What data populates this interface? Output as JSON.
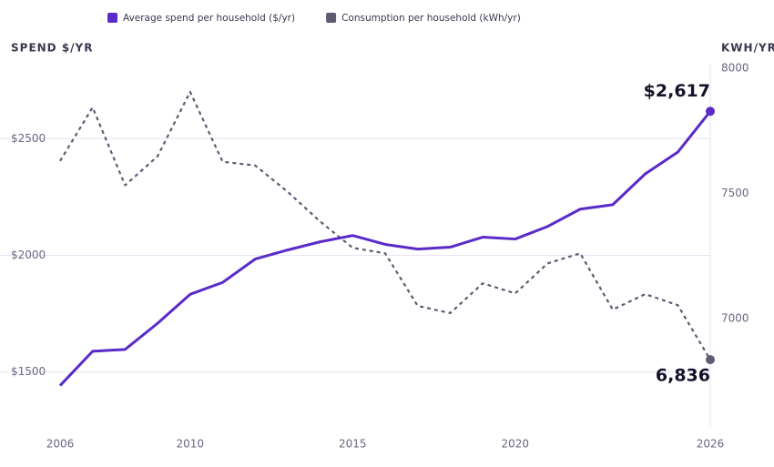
{
  "chart_data": {
    "type": "line",
    "x": [
      2006,
      2007,
      2008,
      2009,
      2010,
      2011,
      2012,
      2013,
      2014,
      2015,
      2016,
      2017,
      2018,
      2019,
      2020,
      2021,
      2022,
      2023,
      2024,
      2025,
      2026
    ],
    "xlim": [
      2006,
      2026
    ],
    "xticks": [
      2006,
      2010,
      2015,
      2020,
      2026
    ],
    "y_label": "SPEND $/YR",
    "y2_label": "KWH/YR",
    "ylim": [
      1300,
      2860
    ],
    "yticks": [
      {
        "value": 1500,
        "label": "$1500"
      },
      {
        "value": 2000,
        "label": "$2000"
      },
      {
        "value": 2500,
        "label": "$2500"
      }
    ],
    "y2lim": [
      6600,
      8055
    ],
    "y2ticks": [
      7000,
      7500,
      8000
    ],
    "grid": true,
    "legend": "top",
    "series": [
      {
        "name": "Average spend per household ($/yr)",
        "color": "#5a2bc8",
        "dashed": false,
        "values": [
          1442,
          1589,
          1597,
          1709,
          1833,
          1884,
          1984,
          2023,
          2058,
          2085,
          2047,
          2027,
          2035,
          2078,
          2070,
          2124,
          2198,
          2217,
          2349,
          2442,
          2617
        ],
        "value_labels": [
          null,
          null,
          null,
          null,
          null,
          null,
          null,
          null,
          null,
          null,
          null,
          null,
          null,
          null,
          null,
          null,
          null,
          null,
          null,
          null,
          "$2,617"
        ]
      },
      {
        "name": "Consumption per household (kWh/yr)",
        "color": "#605b73",
        "dashed": true,
        "axis": "y2",
        "values": [
          7630,
          7844,
          7533,
          7649,
          7906,
          7627,
          7612,
          7507,
          7388,
          7283,
          7261,
          7051,
          7022,
          7141,
          7101,
          7221,
          7261,
          7036,
          7098,
          7054,
          6836
        ],
        "value_labels": [
          null,
          null,
          null,
          null,
          null,
          null,
          null,
          null,
          null,
          null,
          null,
          null,
          null,
          null,
          null,
          null,
          null,
          null,
          null,
          null,
          "6,836"
        ]
      }
    ]
  }
}
